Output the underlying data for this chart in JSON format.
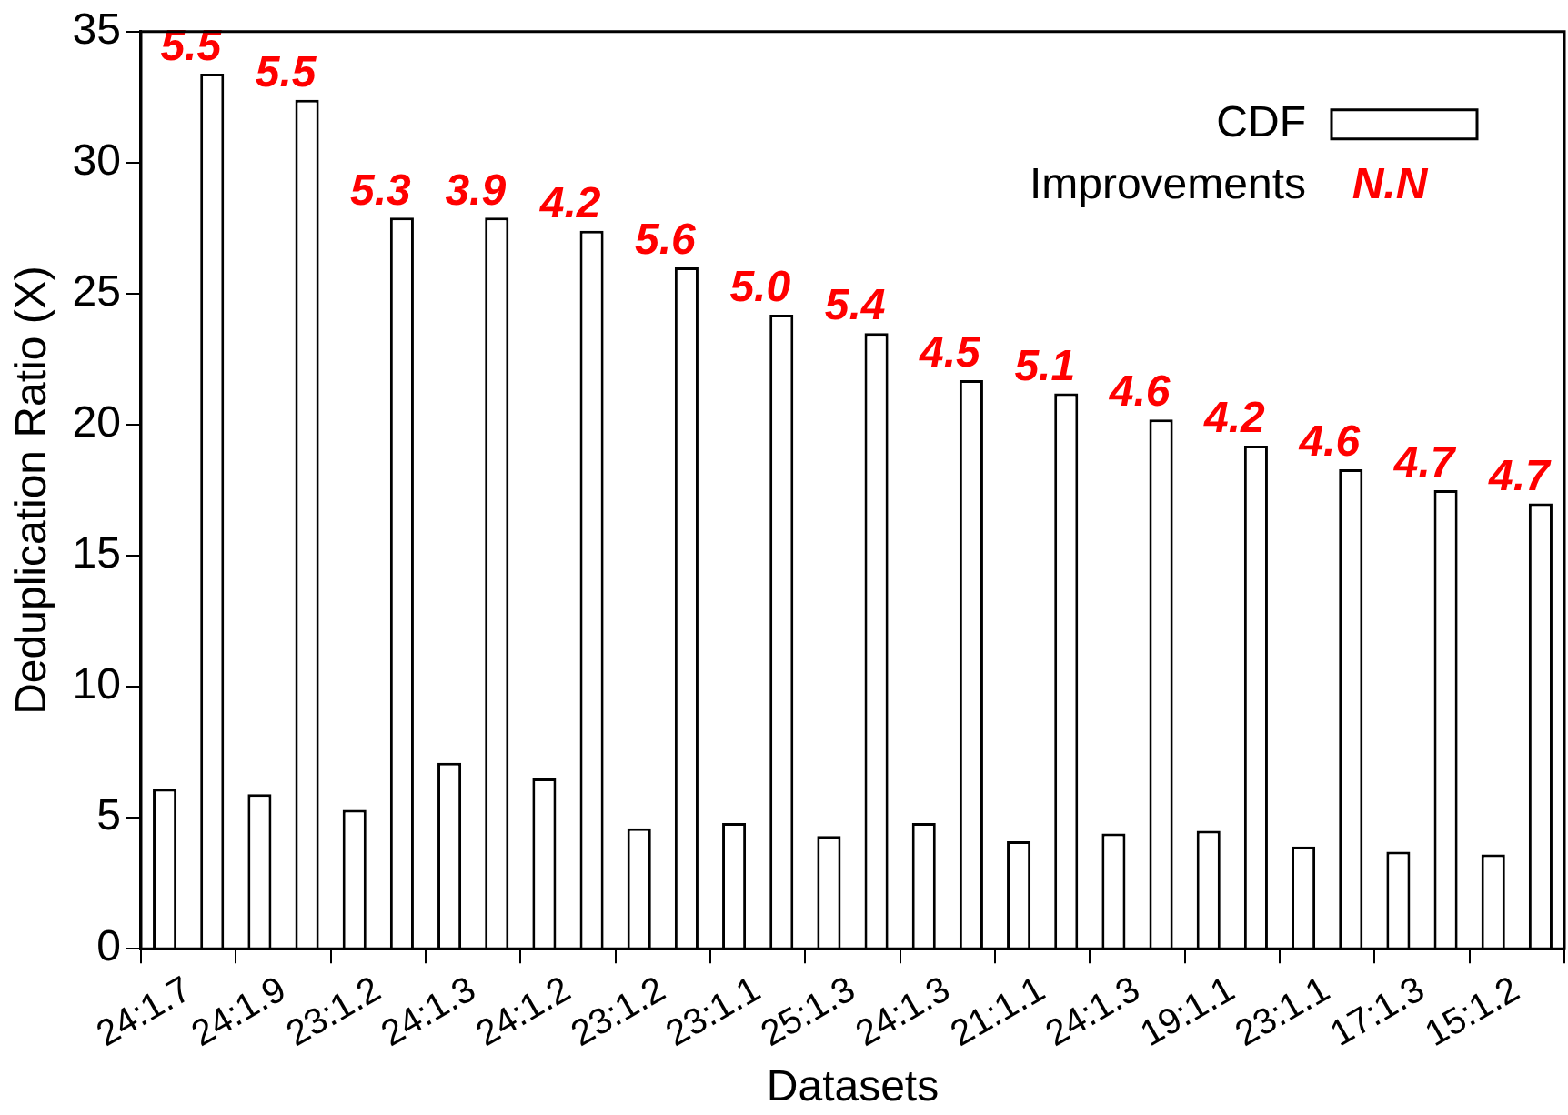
{
  "chart_data": {
    "type": "bar",
    "xlabel": "Datasets",
    "ylabel": "Deduplication Ratio (X)",
    "categories": [
      "24:1.7",
      "24:1.9",
      "23:1.2",
      "24:1.3",
      "24:1.2",
      "23:1.2",
      "23:1.1",
      "25:1.3",
      "24:1.3",
      "21:1.1",
      "24:1.3",
      "19:1.1",
      "23:1.1",
      "17:1.3",
      "15:1.2"
    ],
    "series": [
      {
        "color": "#ffffff",
        "values": [
          6.1,
          5.9,
          5.3,
          7.1,
          6.5,
          4.6,
          4.8,
          4.3,
          4.8,
          4.1,
          4.4,
          4.5,
          3.9,
          3.7,
          3.6
        ]
      },
      {
        "name": "CDF",
        "color": "#ffffff",
        "values": [
          33.4,
          32.4,
          27.9,
          27.9,
          27.4,
          26.0,
          24.2,
          23.5,
          21.7,
          21.2,
          20.2,
          19.2,
          18.3,
          17.5,
          17.0
        ]
      }
    ],
    "annotations": [
      "Improvements",
      "N.N",
      "5.5",
      "5.5",
      "5.3",
      "3.9",
      "4.2",
      "5.6",
      "5.0",
      "5.4",
      "4.5",
      "5.1",
      "4.6",
      "4.2",
      "4.6",
      "4.7",
      "4.7"
    ],
    "ylim": [
      0,
      35
    ],
    "yticks": [
      0,
      5,
      10,
      15,
      20,
      25,
      30,
      35
    ],
    "grid": false,
    "legend": "top right"
  }
}
